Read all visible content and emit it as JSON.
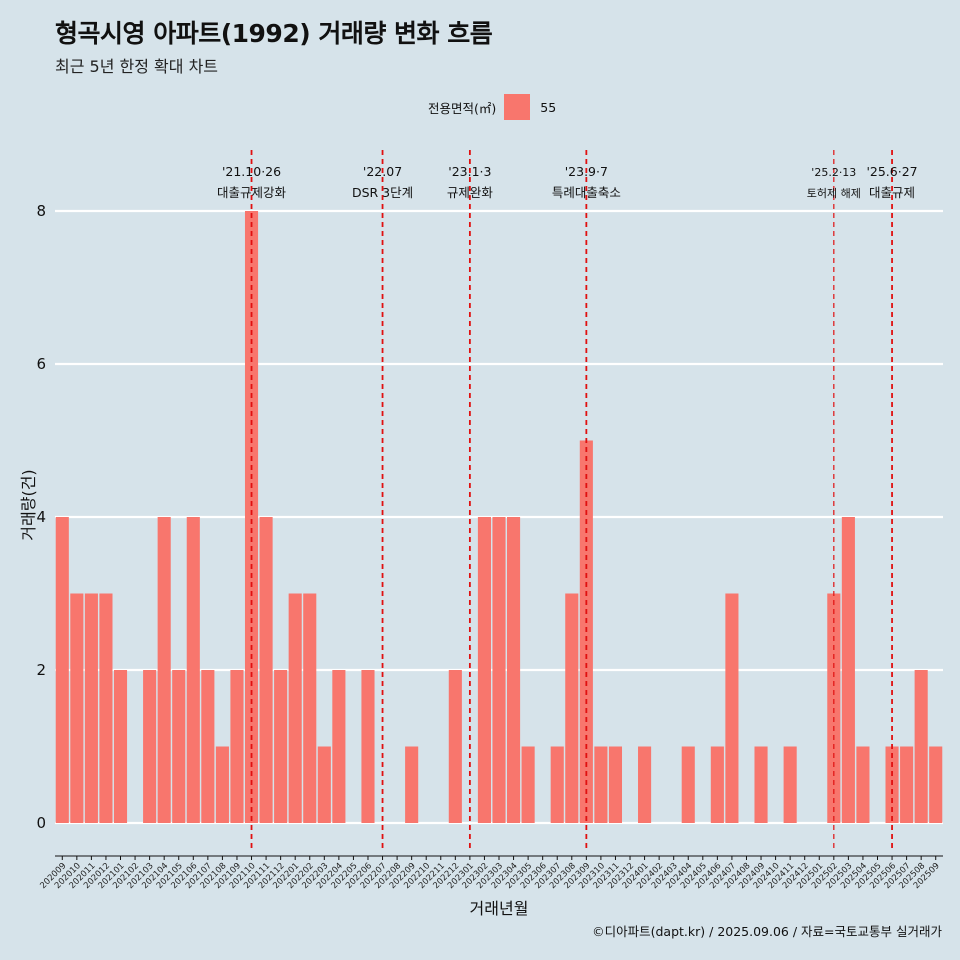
{
  "title": "형곡시영 아파트(1992) 거래량 변화 흐름",
  "subtitle": "최근 5년 한정 확대 차트",
  "legend": {
    "title": "전용면적(㎡)",
    "items": [
      {
        "label": "55",
        "color": "#f8766d"
      }
    ]
  },
  "caption": "©디아파트(dapt.kr) / 2025.09.06 / 자료=국토교통부 실거래가",
  "chart_data": {
    "type": "bar",
    "title": "형곡시영 아파트(1992) 거래량 변화 흐름",
    "subtitle": "최근 5년 한정 확대 차트",
    "xlabel": "거래년월",
    "ylabel": "거래량(건)",
    "ylim": [
      0,
      8
    ],
    "yticks": [
      0,
      2,
      4,
      6,
      8
    ],
    "grid": "horizontal",
    "legend_position": "top",
    "bar_color": "#f8766d",
    "categories": [
      "202009",
      "202010",
      "202011",
      "202012",
      "202101",
      "202102",
      "202103",
      "202104",
      "202105",
      "202106",
      "202107",
      "202108",
      "202109",
      "202110",
      "202111",
      "202112",
      "202201",
      "202202",
      "202203",
      "202204",
      "202205",
      "202206",
      "202207",
      "202208",
      "202209",
      "202210",
      "202211",
      "202212",
      "202301",
      "202302",
      "202303",
      "202304",
      "202305",
      "202306",
      "202307",
      "202308",
      "202309",
      "202310",
      "202311",
      "202312",
      "202401",
      "202402",
      "202403",
      "202404",
      "202405",
      "202406",
      "202407",
      "202408",
      "202409",
      "202410",
      "202411",
      "202412",
      "202501",
      "202502",
      "202503",
      "202504",
      "202505",
      "202506",
      "202507",
      "202508",
      "202509"
    ],
    "series": [
      {
        "name": "55",
        "values": [
          4,
          3,
          3,
          3,
          2,
          0,
          2,
          4,
          2,
          4,
          2,
          1,
          2,
          8,
          4,
          2,
          3,
          3,
          1,
          2,
          0,
          2,
          0,
          0,
          1,
          0,
          0,
          2,
          0,
          4,
          4,
          4,
          1,
          0,
          1,
          3,
          5,
          1,
          1,
          0,
          1,
          0,
          0,
          1,
          0,
          1,
          3,
          0,
          1,
          0,
          1,
          0,
          0,
          3,
          4,
          1,
          0,
          1,
          1,
          2,
          1
        ]
      }
    ],
    "annotations": [
      {
        "category": "202110",
        "date": "'21.10·26",
        "label": "대출규제강화",
        "small": false
      },
      {
        "category": "202207",
        "date": "'22.07",
        "label": "DSR 3단계",
        "small": false
      },
      {
        "category": "202301",
        "date": "'23.1·3",
        "label": "규제완화",
        "small": false
      },
      {
        "category": "202309",
        "date": "'23.9·7",
        "label": "특례대출축소",
        "small": false
      },
      {
        "category": "202502",
        "date": "'25.2·13",
        "label": "토허제 해제",
        "small": true
      },
      {
        "category": "202506",
        "date": "'25.6·27",
        "label": "대출규제",
        "small": false
      }
    ]
  }
}
